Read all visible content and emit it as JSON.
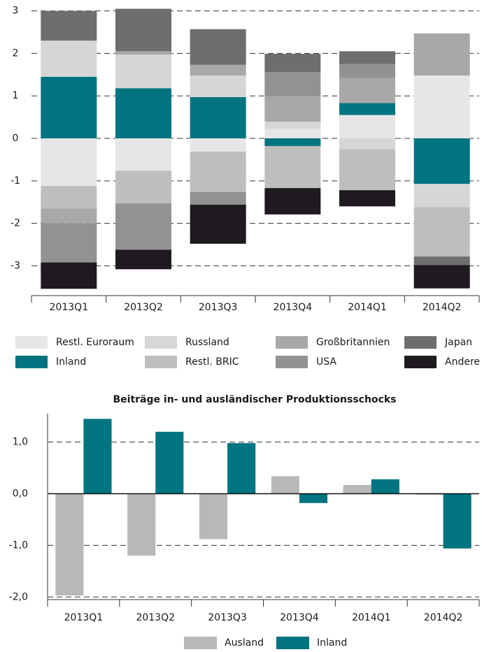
{
  "chart_data": [
    {
      "type": "stacked_bar",
      "categories": [
        "2013Q1",
        "2013Q2",
        "2013Q3",
        "2013Q4",
        "2014Q1",
        "2014Q2"
      ],
      "series": [
        {
          "name": "Restl. Euroraum",
          "color": "#e6e6e6",
          "values": [
            -1.12,
            -0.76,
            -0.31,
            0.23,
            0.55,
            1.48
          ]
        },
        {
          "name": "Inland",
          "color": "#007480",
          "values": [
            1.45,
            1.18,
            0.97,
            -0.18,
            0.28,
            -1.07
          ]
        },
        {
          "name": "Russland",
          "color": "#d6d6d6",
          "values": [
            0.85,
            0.79,
            0.51,
            0.16,
            -0.25,
            -0.55
          ]
        },
        {
          "name": "Restl. BRIC",
          "color": "#bebebe",
          "values": [
            -0.53,
            -0.77,
            -0.95,
            -0.99,
            -0.97,
            -1.16
          ]
        },
        {
          "name": "Großbritannien",
          "color": "#a8a8a8",
          "values": [
            -0.35,
            0.08,
            0.25,
            0.61,
            0.59,
            0.99
          ]
        },
        {
          "name": "USA",
          "color": "#929292",
          "values": [
            -0.92,
            -1.09,
            -0.3,
            0.56,
            0.33,
            0
          ]
        },
        {
          "name": "Japan",
          "color": "#6e6e6e",
          "values": [
            0.7,
            1.0,
            0.84,
            0.43,
            0.3,
            -0.2
          ]
        },
        {
          "name": "Andere",
          "color": "#1e1a1f",
          "values": [
            -0.62,
            -0.46,
            -0.92,
            -0.62,
            -0.38,
            -0.55
          ]
        }
      ],
      "ylim": [
        -3.7,
        3.1
      ],
      "yticks": [
        3,
        2,
        1,
        0,
        -1,
        -2,
        -3
      ],
      "grid": true
    },
    {
      "type": "bar",
      "title": "Beiträge in- und ausländischer Produktionsschocks",
      "categories": [
        "2013Q1",
        "2013Q2",
        "2013Q3",
        "2013Q4",
        "2014Q1",
        "2014Q2"
      ],
      "series": [
        {
          "name": "Ausland",
          "color": "#b8b8b8",
          "values": [
            -1.97,
            -1.2,
            -0.88,
            0.34,
            0.17,
            -0.02
          ]
        },
        {
          "name": "Inland",
          "color": "#007480",
          "values": [
            1.45,
            1.2,
            0.98,
            -0.18,
            0.28,
            -1.06
          ]
        }
      ],
      "ylim": [
        -2.05,
        1.55
      ],
      "yticks": [
        {
          "value": 1,
          "label": "1,0"
        },
        {
          "value": 0,
          "label": "0,0"
        },
        {
          "value": -1,
          "label": "-1,0"
        },
        {
          "value": -2,
          "label": "-2,0"
        }
      ],
      "grid": true
    }
  ]
}
